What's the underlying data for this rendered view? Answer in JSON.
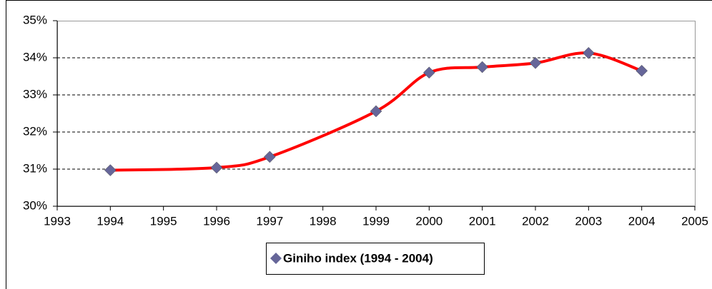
{
  "chart_data": {
    "type": "line",
    "x": [
      1994,
      1996,
      1997,
      1999,
      2000,
      2001,
      2002,
      2003,
      2004
    ],
    "series": [
      {
        "name": "Giniho index (1994 - 2004)",
        "color": "#ff0000",
        "marker_color": "#666699",
        "values": [
          30.97,
          31.04,
          31.33,
          32.56,
          33.6,
          33.75,
          33.86,
          34.13,
          33.65
        ]
      }
    ],
    "xlim": [
      1993,
      2005
    ],
    "xticks": [
      1993,
      1994,
      1995,
      1996,
      1997,
      1998,
      1999,
      2000,
      2001,
      2002,
      2003,
      2004,
      2005
    ],
    "ylim": [
      30,
      35
    ],
    "yticks": [
      {
        "value": 30,
        "label": "30%"
      },
      {
        "value": 31,
        "label": "31%"
      },
      {
        "value": 32,
        "label": "32%"
      },
      {
        "value": 33,
        "label": "33%"
      },
      {
        "value": 34,
        "label": "34%"
      },
      {
        "value": 35,
        "label": "35%"
      }
    ],
    "grid": true,
    "legend": "bottom"
  }
}
